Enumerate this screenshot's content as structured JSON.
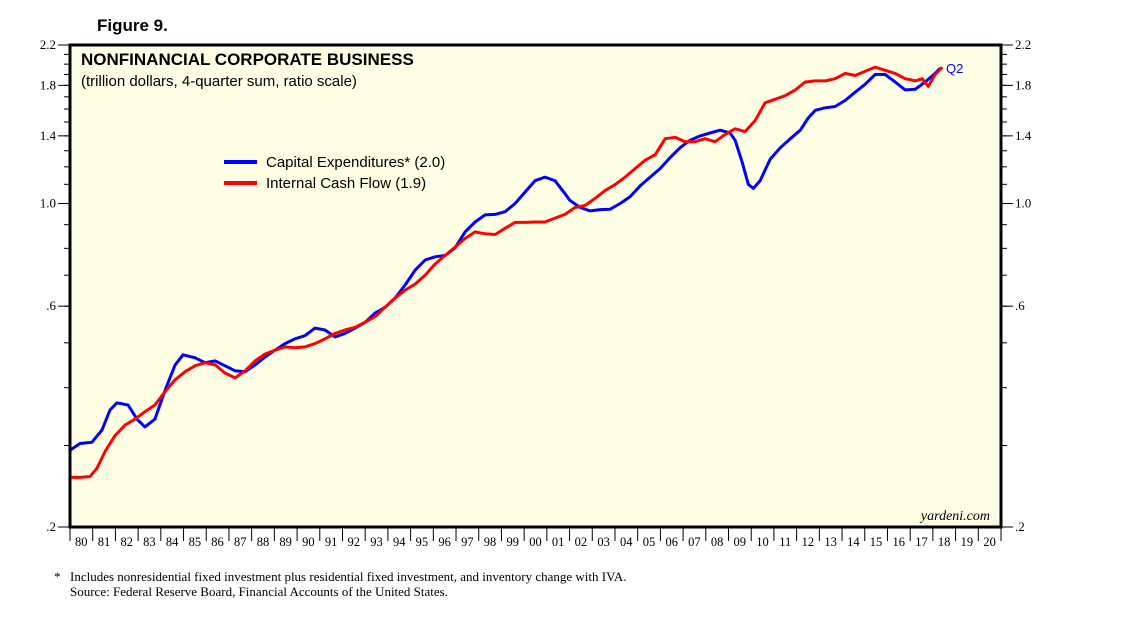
{
  "figure_label": "Figure 9.",
  "chart_data": {
    "type": "line",
    "title": "NONFINANCIAL CORPORATE BUSINESS",
    "subtitle": "(trillion dollars, 4-quarter sum, ratio scale)",
    "yscale": "log",
    "ylim": [
      0.2,
      2.2
    ],
    "xlim": [
      1980,
      2021
    ],
    "ytick_labels": [
      {
        "v": 2.2,
        "t": "2.2"
      },
      {
        "v": 1.8,
        "t": "1.8"
      },
      {
        "v": 1.4,
        "t": "1.4"
      },
      {
        "v": 1.0,
        "t": "1.0"
      },
      {
        "v": 0.6,
        "t": ".6"
      },
      {
        "v": 0.2,
        "t": ".2"
      }
    ],
    "xtick_labels": [
      "80",
      "81",
      "82",
      "83",
      "84",
      "85",
      "86",
      "87",
      "88",
      "89",
      "90",
      "91",
      "92",
      "93",
      "94",
      "95",
      "96",
      "97",
      "98",
      "99",
      "00",
      "01",
      "02",
      "03",
      "04",
      "05",
      "06",
      "07",
      "08",
      "09",
      "10",
      "11",
      "12",
      "13",
      "14",
      "15",
      "16",
      "17",
      "18",
      "19",
      "20"
    ],
    "legend": {
      "placement": "upper-left-center"
    },
    "end_annotation": "Q2",
    "watermark": "yardeni.com",
    "series": [
      {
        "name": "Capital Expenditures* (2.0)",
        "color": "#0000ff",
        "points": [
          [
            1980.0,
            0.293
          ],
          [
            1980.44,
            0.303
          ],
          [
            1980.97,
            0.305
          ],
          [
            1981.41,
            0.324
          ],
          [
            1981.76,
            0.358
          ],
          [
            1982.07,
            0.371
          ],
          [
            1982.56,
            0.367
          ],
          [
            1982.95,
            0.342
          ],
          [
            1983.3,
            0.329
          ],
          [
            1983.74,
            0.342
          ],
          [
            1984.19,
            0.395
          ],
          [
            1984.63,
            0.448
          ],
          [
            1984.98,
            0.471
          ],
          [
            1985.51,
            0.464
          ],
          [
            1985.95,
            0.453
          ],
          [
            1986.39,
            0.457
          ],
          [
            1986.83,
            0.446
          ],
          [
            1987.27,
            0.435
          ],
          [
            1987.71,
            0.433
          ],
          [
            1988.15,
            0.448
          ],
          [
            1988.59,
            0.466
          ],
          [
            1989.03,
            0.482
          ],
          [
            1989.47,
            0.498
          ],
          [
            1989.91,
            0.51
          ],
          [
            1990.35,
            0.518
          ],
          [
            1990.79,
            0.538
          ],
          [
            1991.23,
            0.533
          ],
          [
            1991.67,
            0.515
          ],
          [
            1992.11,
            0.524
          ],
          [
            1992.56,
            0.538
          ],
          [
            1993.0,
            0.554
          ],
          [
            1993.44,
            0.58
          ],
          [
            1993.88,
            0.597
          ],
          [
            1994.32,
            0.625
          ],
          [
            1994.76,
            0.667
          ],
          [
            1995.2,
            0.718
          ],
          [
            1995.64,
            0.755
          ],
          [
            1996.08,
            0.767
          ],
          [
            1996.52,
            0.772
          ],
          [
            1996.96,
            0.802
          ],
          [
            1997.4,
            0.868
          ],
          [
            1997.84,
            0.912
          ],
          [
            1998.28,
            0.945
          ],
          [
            1998.72,
            0.947
          ],
          [
            1999.16,
            0.96
          ],
          [
            1999.6,
            1.0
          ],
          [
            2000.04,
            1.059
          ],
          [
            2000.48,
            1.12
          ],
          [
            2000.92,
            1.14
          ],
          [
            2001.36,
            1.12
          ],
          [
            2001.8,
            1.05
          ],
          [
            2002.02,
            1.015
          ],
          [
            2002.47,
            0.98
          ],
          [
            2002.91,
            0.964
          ],
          [
            2003.35,
            0.97
          ],
          [
            2003.79,
            0.972
          ],
          [
            2004.23,
            1.0
          ],
          [
            2004.67,
            1.035
          ],
          [
            2005.11,
            1.092
          ],
          [
            2005.55,
            1.14
          ],
          [
            2005.99,
            1.19
          ],
          [
            2006.43,
            1.257
          ],
          [
            2006.87,
            1.32
          ],
          [
            2007.31,
            1.37
          ],
          [
            2007.75,
            1.4
          ],
          [
            2008.19,
            1.42
          ],
          [
            2008.63,
            1.44
          ],
          [
            2009.07,
            1.42
          ],
          [
            2009.29,
            1.37
          ],
          [
            2009.6,
            1.23
          ],
          [
            2009.87,
            1.1
          ],
          [
            2010.09,
            1.078
          ],
          [
            2010.39,
            1.12
          ],
          [
            2010.83,
            1.245
          ],
          [
            2011.28,
            1.32
          ],
          [
            2011.72,
            1.38
          ],
          [
            2012.16,
            1.44
          ],
          [
            2012.51,
            1.53
          ],
          [
            2012.82,
            1.59
          ],
          [
            2013.26,
            1.61
          ],
          [
            2013.7,
            1.62
          ],
          [
            2014.14,
            1.67
          ],
          [
            2014.58,
            1.74
          ],
          [
            2015.02,
            1.81
          ],
          [
            2015.46,
            1.9
          ],
          [
            2015.9,
            1.9
          ],
          [
            2016.34,
            1.83
          ],
          [
            2016.78,
            1.76
          ],
          [
            2017.22,
            1.765
          ],
          [
            2017.66,
            1.83
          ],
          [
            2018.1,
            1.91
          ],
          [
            2018.32,
            1.96
          ]
        ]
      },
      {
        "name": "Internal Cash Flow (1.9)",
        "color": "#ff0000",
        "points": [
          [
            1980.0,
            0.256
          ],
          [
            1980.44,
            0.256
          ],
          [
            1980.88,
            0.257
          ],
          [
            1981.19,
            0.268
          ],
          [
            1981.54,
            0.291
          ],
          [
            1981.98,
            0.315
          ],
          [
            1982.42,
            0.332
          ],
          [
            1982.86,
            0.342
          ],
          [
            1983.3,
            0.355
          ],
          [
            1983.74,
            0.367
          ],
          [
            1984.19,
            0.392
          ],
          [
            1984.63,
            0.416
          ],
          [
            1985.07,
            0.433
          ],
          [
            1985.51,
            0.446
          ],
          [
            1985.95,
            0.453
          ],
          [
            1986.39,
            0.448
          ],
          [
            1986.83,
            0.43
          ],
          [
            1987.27,
            0.42
          ],
          [
            1987.71,
            0.435
          ],
          [
            1988.15,
            0.457
          ],
          [
            1988.59,
            0.473
          ],
          [
            1989.03,
            0.482
          ],
          [
            1989.47,
            0.49
          ],
          [
            1989.91,
            0.488
          ],
          [
            1990.35,
            0.49
          ],
          [
            1990.79,
            0.498
          ],
          [
            1991.23,
            0.51
          ],
          [
            1991.67,
            0.524
          ],
          [
            1992.11,
            0.533
          ],
          [
            1992.56,
            0.54
          ],
          [
            1993.0,
            0.554
          ],
          [
            1993.44,
            0.57
          ],
          [
            1993.88,
            0.597
          ],
          [
            1994.32,
            0.625
          ],
          [
            1994.76,
            0.65
          ],
          [
            1995.2,
            0.67
          ],
          [
            1995.64,
            0.7
          ],
          [
            1996.08,
            0.74
          ],
          [
            1996.52,
            0.772
          ],
          [
            1996.96,
            0.805
          ],
          [
            1997.4,
            0.84
          ],
          [
            1997.84,
            0.868
          ],
          [
            1998.28,
            0.86
          ],
          [
            1998.72,
            0.857
          ],
          [
            1999.16,
            0.884
          ],
          [
            1999.6,
            0.91
          ],
          [
            2000.04,
            0.91
          ],
          [
            2000.48,
            0.912
          ],
          [
            2000.92,
            0.912
          ],
          [
            2001.36,
            0.93
          ],
          [
            2001.8,
            0.947
          ],
          [
            2002.24,
            0.98
          ],
          [
            2002.68,
            0.99
          ],
          [
            2003.12,
            1.025
          ],
          [
            2003.56,
            1.066
          ],
          [
            2004.0,
            1.098
          ],
          [
            2004.45,
            1.14
          ],
          [
            2004.89,
            1.19
          ],
          [
            2005.33,
            1.24
          ],
          [
            2005.77,
            1.275
          ],
          [
            2006.21,
            1.38
          ],
          [
            2006.65,
            1.39
          ],
          [
            2007.09,
            1.36
          ],
          [
            2007.53,
            1.36
          ],
          [
            2007.97,
            1.38
          ],
          [
            2008.41,
            1.36
          ],
          [
            2008.85,
            1.41
          ],
          [
            2009.29,
            1.45
          ],
          [
            2009.73,
            1.43
          ],
          [
            2010.17,
            1.51
          ],
          [
            2010.61,
            1.65
          ],
          [
            2011.06,
            1.68
          ],
          [
            2011.5,
            1.71
          ],
          [
            2011.94,
            1.76
          ],
          [
            2012.38,
            1.83
          ],
          [
            2012.82,
            1.84
          ],
          [
            2013.26,
            1.84
          ],
          [
            2013.7,
            1.86
          ],
          [
            2014.14,
            1.91
          ],
          [
            2014.58,
            1.89
          ],
          [
            2015.02,
            1.93
          ],
          [
            2015.46,
            1.97
          ],
          [
            2015.9,
            1.94
          ],
          [
            2016.34,
            1.91
          ],
          [
            2016.78,
            1.86
          ],
          [
            2017.22,
            1.84
          ],
          [
            2017.53,
            1.86
          ],
          [
            2017.8,
            1.79
          ],
          [
            2018.1,
            1.9
          ],
          [
            2018.41,
            1.97
          ]
        ]
      }
    ]
  },
  "footnote": {
    "marker": "*",
    "line1": "Includes nonresidential fixed investment plus residential fixed investment, and inventory change with IVA.",
    "line2": "Source: Federal Reserve Board, Financial Accounts of the United States."
  }
}
